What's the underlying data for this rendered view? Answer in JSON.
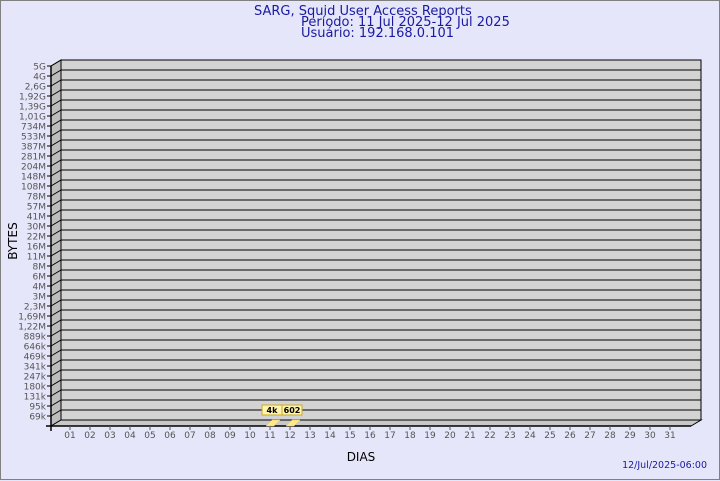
{
  "header": {
    "title": "SARG, Squid User Access Reports",
    "period": "Período: 11 Jul 2025-12 Jul 2025",
    "user": "Usuário: 192.168.0.101"
  },
  "footer": {
    "generated": "12/Jul/2025-06:00"
  },
  "colors": {
    "background": "#e6e6fa",
    "plot": "#d3d3d3",
    "bar": "#ffe88a",
    "label_box": "#fff4a8",
    "title": "#1a1aa0"
  },
  "chart_data": {
    "type": "bar",
    "xlabel": "DIAS",
    "ylabel": "BYTES",
    "y_scale": "log",
    "y_ticks": [
      "69k",
      "95k",
      "131k",
      "180k",
      "247k",
      "341k",
      "469k",
      "646k",
      "889k",
      "1,22M",
      "1,69M",
      "2,3M",
      "3M",
      "4M",
      "6M",
      "8M",
      "11M",
      "16M",
      "22M",
      "30M",
      "41M",
      "57M",
      "78M",
      "108M",
      "148M",
      "204M",
      "281M",
      "387M",
      "533M",
      "734M",
      "1,01G",
      "1,39G",
      "1,92G",
      "2,6G",
      "4G",
      "5G"
    ],
    "categories": [
      "01",
      "02",
      "03",
      "04",
      "05",
      "06",
      "07",
      "08",
      "09",
      "10",
      "11",
      "12",
      "13",
      "14",
      "15",
      "16",
      "17",
      "18",
      "19",
      "20",
      "21",
      "22",
      "23",
      "24",
      "25",
      "26",
      "27",
      "28",
      "29",
      "30",
      "31"
    ],
    "bars": [
      {
        "day": "11",
        "value_label": "4k"
      },
      {
        "day": "12",
        "value_label": "602"
      }
    ],
    "grid": true
  }
}
